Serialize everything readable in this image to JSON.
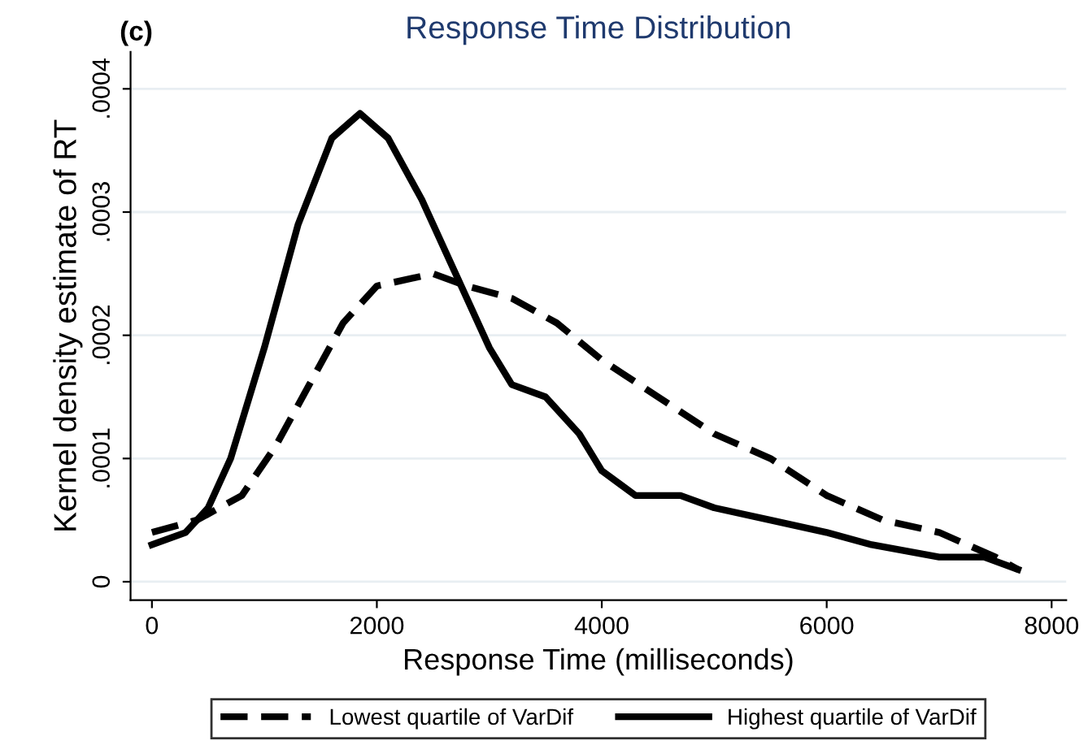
{
  "chart_data": {
    "type": "line",
    "title": "Response Time Distribution",
    "xlabel": "Response Time (milliseconds)",
    "ylabel": "Kernel density estimate of RT",
    "annotations": [
      "(c)"
    ],
    "xlim": [
      -190,
      8130
    ],
    "xticks": [
      0,
      2000,
      4000,
      6000,
      8000
    ],
    "ylim": [
      -1.5e-05,
      0.00043
    ],
    "yticks": [
      {
        "value": 0,
        "label": "0"
      },
      {
        "value": 0.0001,
        "label": ".0001"
      },
      {
        "value": 0.0002,
        "label": ".0002"
      },
      {
        "value": 0.0003,
        "label": ".0003"
      },
      {
        "value": 0.0004,
        "label": ".0004"
      }
    ],
    "grid": "y",
    "legend": "bottom",
    "series": [
      {
        "name": "Lowest quartile of VarDif",
        "color": "#000000",
        "line_style": "dashed",
        "x": [
          0,
          400,
          800,
          1100,
          1400,
          1700,
          2000,
          2500,
          2800,
          3200,
          3600,
          4000,
          4500,
          5000,
          5500,
          6000,
          6500,
          7000,
          7500,
          7700
        ],
        "values": [
          4e-05,
          5e-05,
          7e-05,
          0.00011,
          0.00016,
          0.00021,
          0.00024,
          0.00025,
          0.00024,
          0.00023,
          0.00021,
          0.00018,
          0.00015,
          0.00012,
          0.0001,
          7e-05,
          5e-05,
          4e-05,
          2e-05,
          1e-05
        ]
      },
      {
        "name": "Highest quartile of VarDif",
        "color": "#000000",
        "line_style": "solid",
        "x": [
          0,
          300,
          500,
          700,
          1000,
          1300,
          1600,
          1850,
          2100,
          2400,
          2700,
          3000,
          3200,
          3500,
          3800,
          4000,
          4300,
          4700,
          5000,
          5500,
          6000,
          6400,
          7000,
          7400,
          7700
        ],
        "values": [
          3e-05,
          4e-05,
          6e-05,
          0.0001,
          0.00019,
          0.00029,
          0.00036,
          0.00038,
          0.00036,
          0.00031,
          0.00025,
          0.00019,
          0.00016,
          0.00015,
          0.00012,
          9e-05,
          7e-05,
          7e-05,
          6e-05,
          5e-05,
          4e-05,
          3e-05,
          2e-05,
          2e-05,
          1e-05
        ]
      }
    ]
  }
}
